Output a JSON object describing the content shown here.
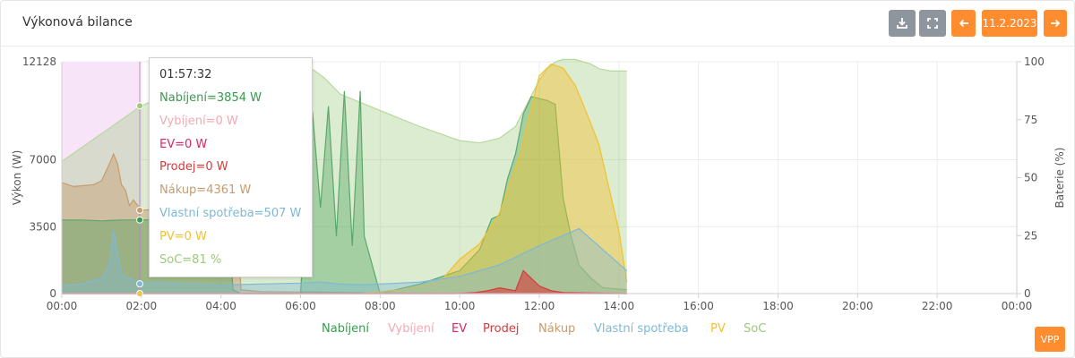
{
  "header": {
    "title": "Výkonová bilance",
    "date_label": "11.2.2023",
    "vpp_label": "VPP"
  },
  "icons": {
    "download": "download-icon",
    "fullscreen": "fullscreen-icon",
    "prev": "arrow-left-icon",
    "next": "arrow-right-icon"
  },
  "colors": {
    "Nabíjení": "#3a9a4e",
    "Vybíjení": "#f4a9b4",
    "EV": "#e0245e",
    "Prodej": "#d63a3a",
    "Nákup": "#c69c6d",
    "Vlastní spotřeba": "#7fb8d4",
    "PV": "#f2c12e",
    "SoC": "#9cc97a",
    "accent": "#ff8c2e"
  },
  "tooltip": {
    "time": "01:57:32",
    "rows": [
      {
        "text": "Nabíjení=3854 W",
        "color": "#3a9a4e"
      },
      {
        "text": "Vybíjení=0 W",
        "color": "#f4a9b4"
      },
      {
        "text": "EV=0 W",
        "color": "#e0245e"
      },
      {
        "text": "Prodej=0 W",
        "color": "#d63a3a"
      },
      {
        "text": "Nákup=4361 W",
        "color": "#c69c6d"
      },
      {
        "text": "Vlastní spotřeba=507 W",
        "color": "#7fb8d4"
      },
      {
        "text": "PV=0 W",
        "color": "#f2c12e"
      },
      {
        "text": "SoC=81 %",
        "color": "#9cc97a"
      }
    ]
  },
  "chart_data": {
    "type": "area",
    "x_unit": "hours",
    "xlim": [
      0,
      24
    ],
    "x_tick_labels": [
      "00:00",
      "02:00",
      "04:00",
      "06:00",
      "08:00",
      "10:00",
      "12:00",
      "14:00",
      "16:00",
      "18:00",
      "20:00",
      "22:00",
      "00:00"
    ],
    "ylabel": "Výkon (W)",
    "ylim": [
      0,
      12128
    ],
    "y_ticks": [
      0,
      3500,
      7000,
      12128
    ],
    "y2label": "Baterie (%)",
    "y2lim": [
      0,
      100
    ],
    "y2_ticks": [
      0,
      25,
      50,
      75,
      100
    ],
    "grid": true,
    "legend_position": "bottom",
    "cursor_x": 1.96,
    "series": [
      {
        "name": "SoC",
        "axis": "right",
        "x": [
          0,
          2,
          3,
          5.9,
          6.2,
          6.6,
          7,
          8,
          9,
          10,
          10.5,
          11,
          11.4,
          11.7,
          12,
          12.2,
          12.4,
          12.6,
          12.9,
          13.3,
          13.5,
          13.8,
          14.2
        ],
        "y": [
          57,
          81,
          88,
          97,
          98,
          93,
          86,
          79,
          72,
          66,
          65,
          67,
          72,
          82,
          92,
          97,
          100,
          101,
          101,
          99,
          97,
          96,
          96
        ]
      },
      {
        "name": "Nákup",
        "axis": "left",
        "x": [
          0,
          0.3,
          0.8,
          1,
          1.2,
          1.3,
          1.4,
          1.5,
          1.6,
          1.7,
          1.8,
          2,
          2.4,
          2.8,
          3.3,
          3.8,
          4.2,
          4.4,
          4.5,
          5,
          6,
          6.5,
          7,
          7.5,
          8,
          14.2
        ],
        "y": [
          5800,
          5600,
          5700,
          5900,
          6800,
          7300,
          6800,
          5700,
          5400,
          4600,
          4900,
          4361,
          4400,
          4500,
          4400,
          4300,
          4300,
          4500,
          200,
          100,
          80,
          80,
          60,
          40,
          30,
          0
        ]
      },
      {
        "name": "Nabíjení",
        "axis": "left",
        "x": [
          0,
          0.5,
          1,
          1.5,
          2,
          2.5,
          3,
          3.5,
          4,
          4.2,
          4.3,
          4.5,
          5,
          6,
          6.3,
          6.5,
          6.7,
          6.9,
          7.1,
          7.3,
          7.5,
          7.6,
          8,
          9,
          10,
          10.5,
          10.8,
          11,
          11.2,
          11.4,
          11.6,
          11.8,
          12,
          12.2,
          12.4,
          12.6,
          12.8,
          13,
          13.3,
          13.6,
          14.2
        ],
        "y": [
          3850,
          3850,
          3800,
          3850,
          3854,
          3850,
          3850,
          3850,
          3800,
          3850,
          200,
          0,
          0,
          0,
          9500,
          4500,
          9800,
          3000,
          10600,
          2500,
          10600,
          3000,
          0,
          500,
          1200,
          2300,
          3900,
          4100,
          6000,
          7300,
          9400,
          10300,
          10200,
          10100,
          9900,
          5000,
          3000,
          1500,
          800,
          300,
          200
        ]
      },
      {
        "name": "PV",
        "axis": "left",
        "x": [
          0,
          7.5,
          8.5,
          9.5,
          10,
          10.5,
          11,
          11.5,
          12,
          12.3,
          12.6,
          12.9,
          13.2,
          13.5,
          14,
          14.2
        ],
        "y": [
          0,
          0,
          200,
          600,
          1800,
          2600,
          4200,
          7200,
          11400,
          12000,
          11800,
          10900,
          9400,
          7800,
          3300,
          600
        ]
      },
      {
        "name": "Vlastní spotřeba",
        "axis": "left",
        "x": [
          0,
          0.5,
          1,
          1.2,
          1.3,
          1.5,
          2,
          2.5,
          3,
          4,
          5,
          6,
          6.5,
          7,
          7.5,
          8,
          9,
          10,
          11,
          12,
          13,
          14.2
        ],
        "y": [
          400,
          500,
          800,
          1500,
          3300,
          1000,
          507,
          600,
          500,
          450,
          500,
          550,
          600,
          500,
          450,
          500,
          600,
          900,
          1500,
          2500,
          3400,
          1200
        ]
      },
      {
        "name": "Prodej",
        "axis": "left",
        "x": [
          0,
          9.9,
          10.4,
          10.7,
          11,
          11.4,
          11.6,
          12,
          12.3,
          12.6,
          14.2
        ],
        "y": [
          0,
          0,
          50,
          150,
          300,
          150,
          1200,
          400,
          150,
          50,
          0
        ]
      },
      {
        "name": "Vybíjení",
        "axis": "left",
        "x": [
          0,
          14.2
        ],
        "y": [
          0,
          0
        ]
      },
      {
        "name": "EV",
        "axis": "left",
        "x": [
          0,
          14.2
        ],
        "y": [
          0,
          0
        ]
      }
    ]
  }
}
